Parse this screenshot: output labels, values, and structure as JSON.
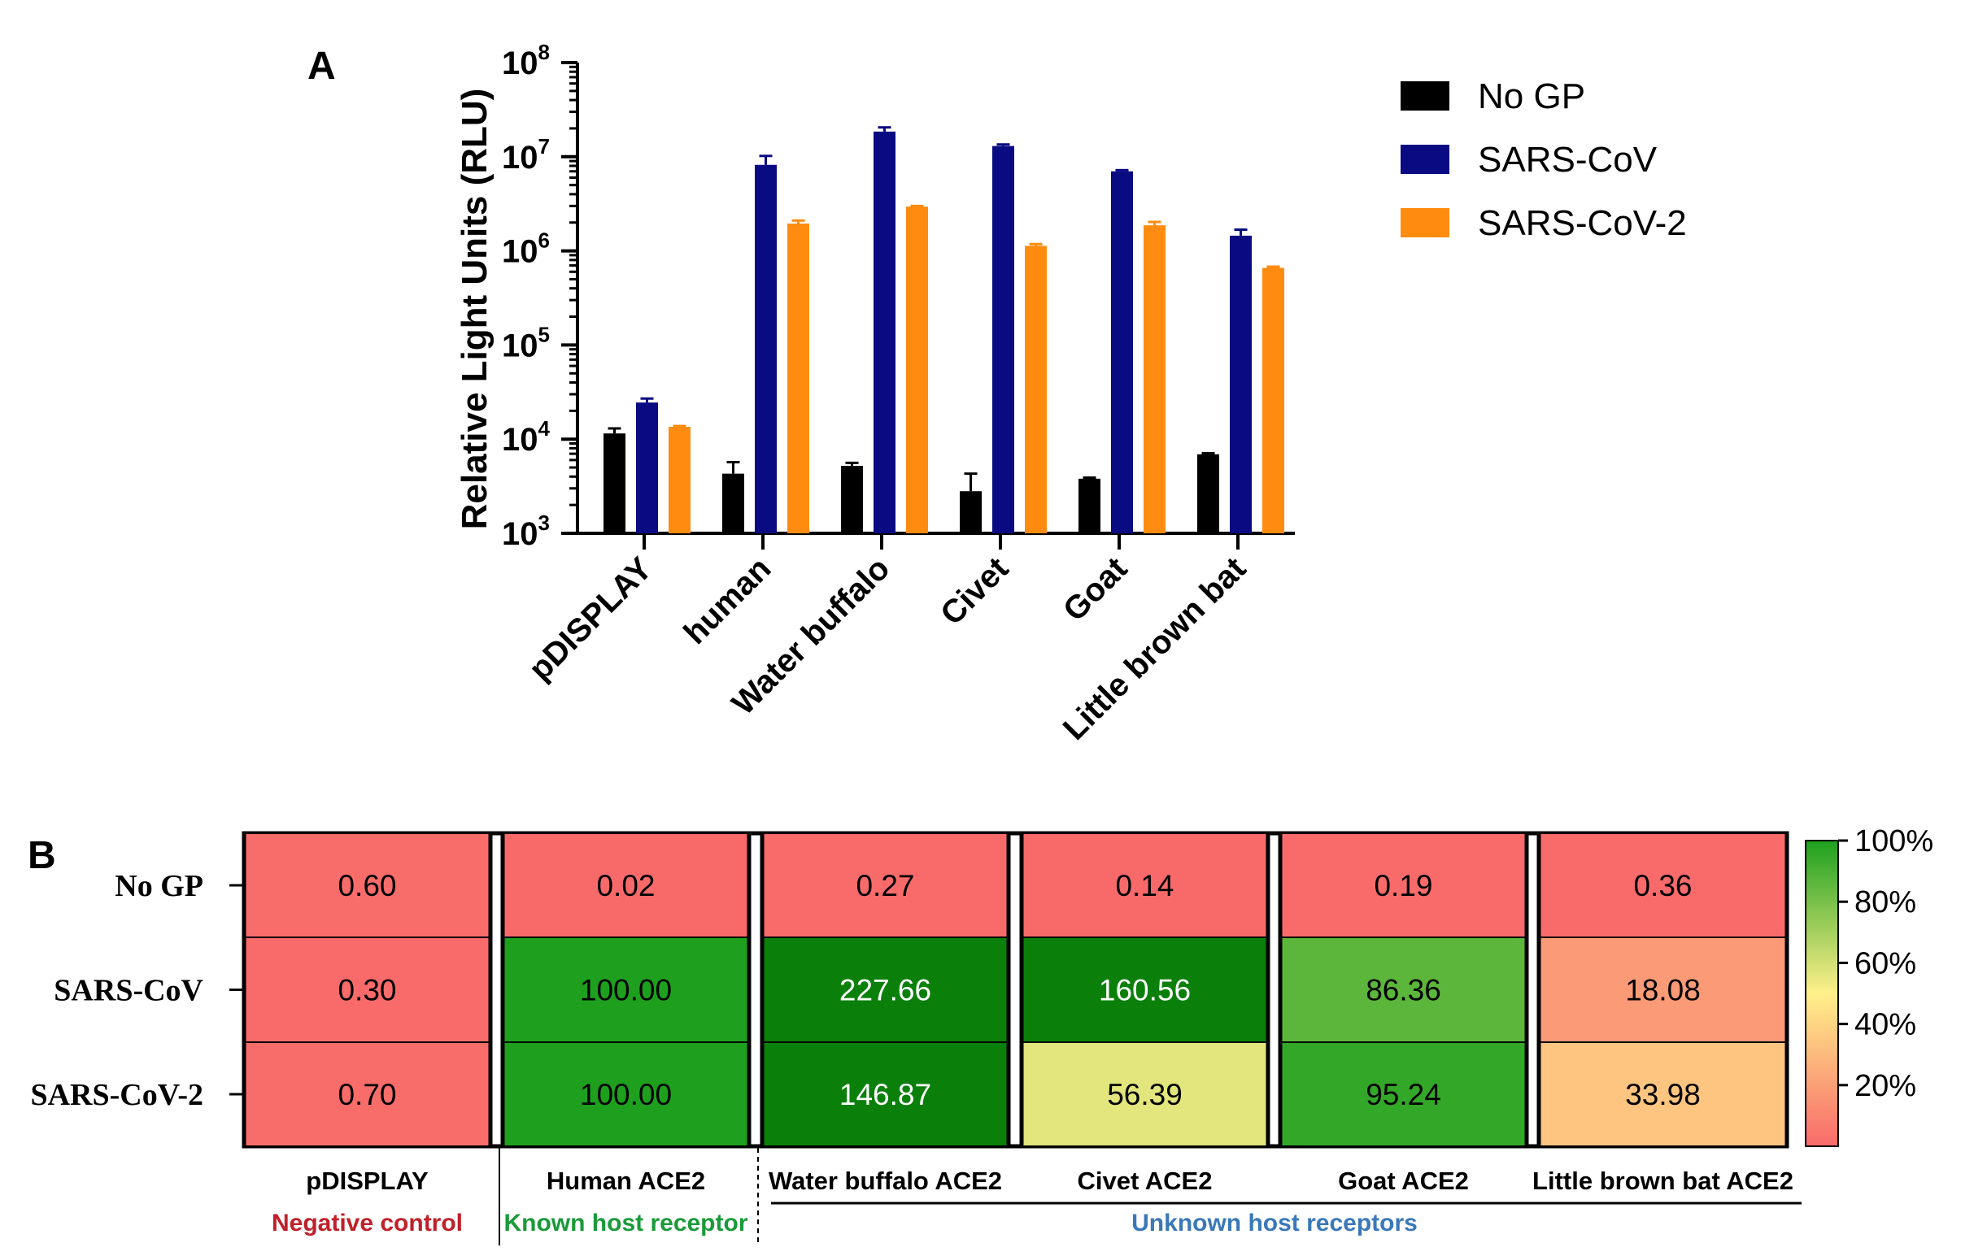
{
  "chart_data": [
    {
      "panel": "A",
      "type": "bar",
      "ylabel": "Relative  Light  Units (RLU)",
      "yscale": "log",
      "ylim": [
        1000,
        100000000
      ],
      "y_ticks": [
        {
          "base": "10",
          "exp": "3",
          "value": 1000
        },
        {
          "base": "10",
          "exp": "4",
          "value": 10000
        },
        {
          "base": "10",
          "exp": "5",
          "value": 100000
        },
        {
          "base": "10",
          "exp": "6",
          "value": 1000000
        },
        {
          "base": "10",
          "exp": "7",
          "value": 10000000
        },
        {
          "base": "10",
          "exp": "8",
          "value": 100000000
        }
      ],
      "categories": [
        "pDISPLAY",
        "human",
        "Water buffalo",
        "Civet",
        "Goat",
        "Little brown bat"
      ],
      "legend_position": "top-right",
      "series": [
        {
          "name": "No GP",
          "color": "#000000",
          "values": [
            11500,
            4300,
            5200,
            2800,
            3800,
            6900
          ],
          "errors": [
            13000,
            5700,
            5600,
            4300,
            3900,
            7100
          ]
        },
        {
          "name": "SARS-CoV",
          "color": "#0a0a82",
          "values": [
            24500,
            8200000,
            18500000,
            13000000,
            7000000,
            1450000
          ],
          "errors": [
            27000,
            10200000,
            20500000,
            13500000,
            7200000,
            1680000
          ]
        },
        {
          "name": "SARS-CoV-2",
          "color": "#ff8c10",
          "values": [
            13500,
            1950000,
            2950000,
            1130000,
            1870000,
            660000
          ],
          "errors": [
            13800,
            2100000,
            3000000,
            1180000,
            2030000,
            680000
          ]
        }
      ]
    },
    {
      "panel": "B",
      "type": "heatmap",
      "rows": [
        "No GP",
        "SARS-CoV",
        "SARS-CoV-2"
      ],
      "columns": [
        "pDISPLAY",
        "Human ACE2",
        "Water buffalo ACE2",
        "Civet ACE2",
        "Goat ACE2",
        "Little brown bat ACE2"
      ],
      "values": [
        [
          0.6,
          0.02,
          0.27,
          0.14,
          0.19,
          0.36
        ],
        [
          0.3,
          100.0,
          227.66,
          160.56,
          86.36,
          18.08
        ],
        [
          0.7,
          100.0,
          146.87,
          56.39,
          95.24,
          33.98
        ]
      ],
      "value_labels": [
        [
          "0.60",
          "0.02",
          "0.27",
          "0.14",
          "0.19",
          "0.36"
        ],
        [
          "0.30",
          "100.00",
          "227.66",
          "160.56",
          "86.36",
          "18.08"
        ],
        [
          "0.70",
          "100.00",
          "146.87",
          "56.39",
          "95.24",
          "33.98"
        ]
      ],
      "colorbar": {
        "ticks": [
          "100%",
          "80%",
          "60%",
          "40%",
          "20%"
        ],
        "tick_values": [
          100,
          80,
          60,
          40,
          20
        ],
        "range": [
          0,
          100
        ],
        "colors": {
          "low": "#f86a6a",
          "mid": "#fff08a",
          "high": "#1ea01e",
          "max": "#0a800a"
        }
      },
      "groups": [
        {
          "label": "Negative control",
          "color": "#c0202a",
          "columns": [
            0
          ]
        },
        {
          "label": "Known host receptor",
          "color": "#1a9a3a",
          "columns": [
            1
          ]
        },
        {
          "label": "Unknown host receptors",
          "color": "#3a78b8",
          "columns": [
            2,
            3,
            4,
            5
          ]
        }
      ]
    }
  ]
}
